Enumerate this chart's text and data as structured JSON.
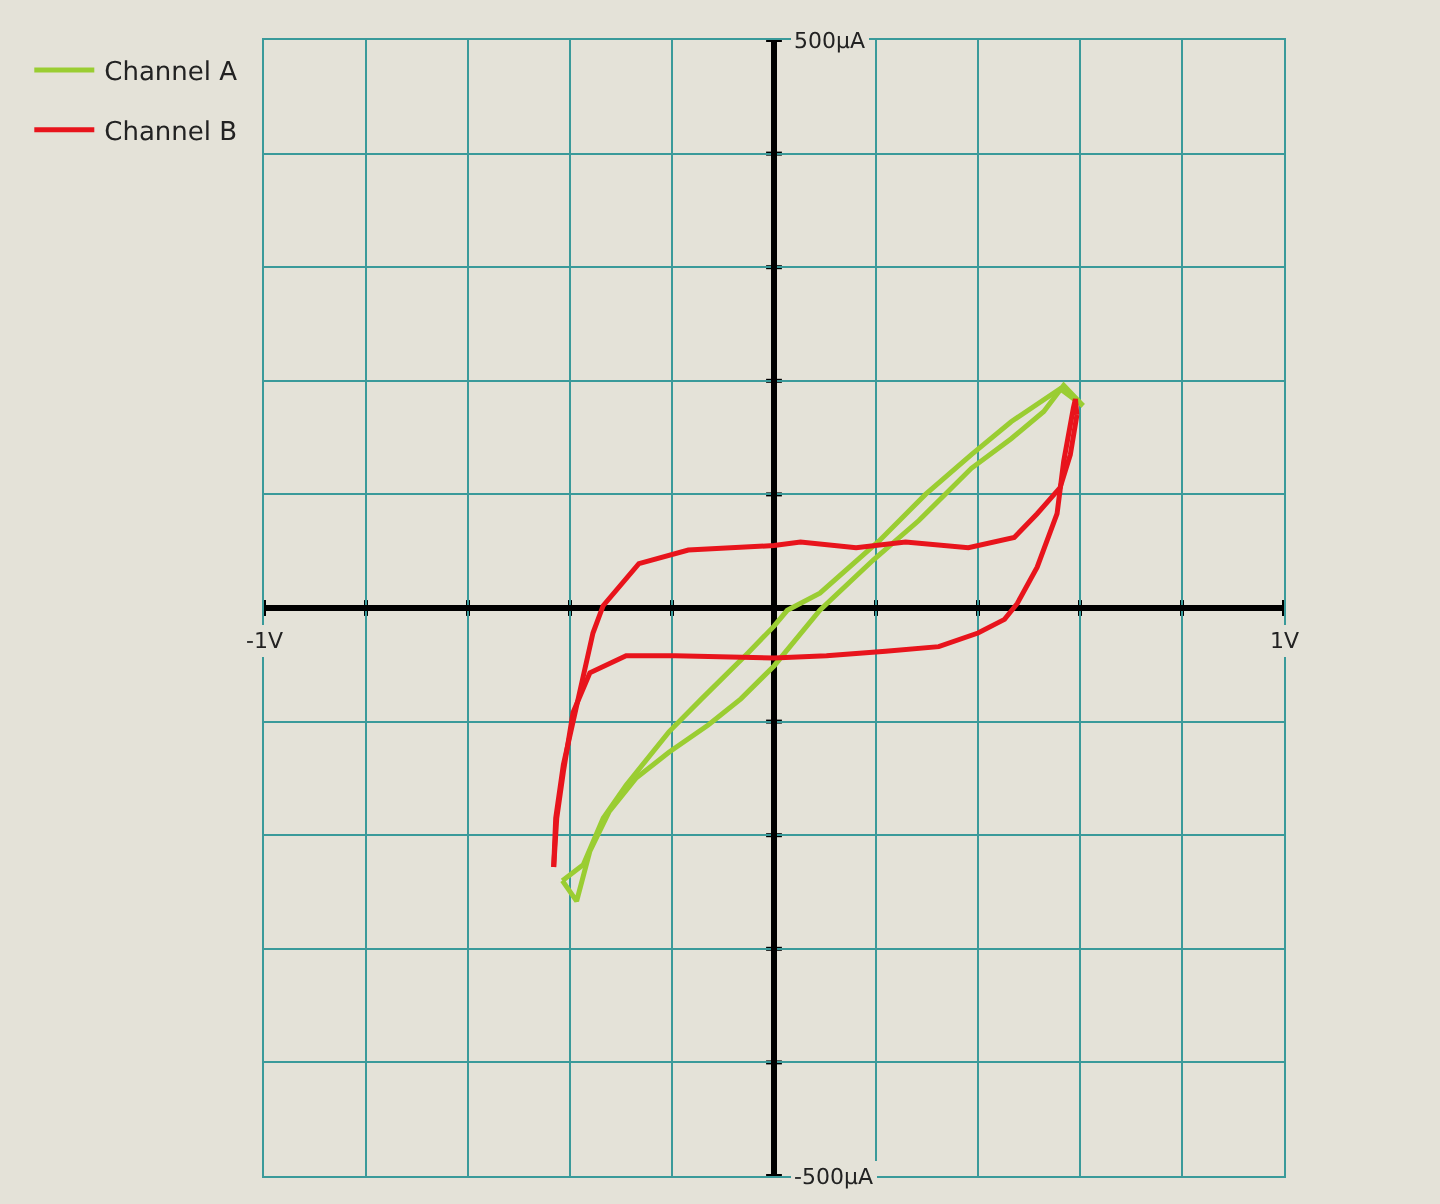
{
  "chart_data": {
    "type": "line",
    "xlim": [
      -1,
      1
    ],
    "xticks": [
      {
        "value": -1,
        "label": "-1V"
      },
      {
        "value": -0.8,
        "label": null
      },
      {
        "value": -0.6,
        "label": null
      },
      {
        "value": -0.4,
        "label": null
      },
      {
        "value": -0.2,
        "label": null
      },
      {
        "value": 0,
        "label": null
      },
      {
        "value": 0.2,
        "label": null
      },
      {
        "value": 0.4,
        "label": null
      },
      {
        "value": 0.6,
        "label": null
      },
      {
        "value": 0.8,
        "label": null
      },
      {
        "value": 1,
        "label": "1V"
      }
    ],
    "ylim": [
      -500,
      500
    ],
    "yticks": [
      {
        "value": -500,
        "label": "-500µA"
      },
      {
        "value": -400,
        "label": null
      },
      {
        "value": -300,
        "label": null
      },
      {
        "value": -200,
        "label": null
      },
      {
        "value": -100,
        "label": null
      },
      {
        "value": 0,
        "label": null
      },
      {
        "value": 100,
        "label": null
      },
      {
        "value": 200,
        "label": null
      },
      {
        "value": 300,
        "label": null
      },
      {
        "value": 400,
        "label": null
      },
      {
        "value": 500,
        "label": "500µA"
      }
    ],
    "grid": true,
    "legend": "top left",
    "series": [
      {
        "name": "Channel A",
        "color": "#9acd32",
        "x": [
          -0.415,
          -0.387,
          -0.361,
          -0.323,
          -0.271,
          -0.206,
          -0.129,
          -0.065,
          0,
          0.09,
          0.194,
          0.284,
          0.387,
          0.465,
          0.529,
          0.568,
          0.606,
          null,
          0.606,
          0.561,
          0.465,
          0.387,
          0.297,
          0.206,
          0.09,
          0.026,
          0,
          -0.052,
          -0.142,
          -0.206,
          -0.29,
          -0.335,
          -0.374,
          -0.415
        ],
        "values": [
          -240,
          -258,
          -214,
          -179,
          -150,
          -127,
          -103,
          -80,
          -51,
          -2,
          42,
          77,
          123,
          149,
          173,
          196,
          178,
          null,
          178,
          193,
          164,
          135,
          100,
          59,
          13,
          -2,
          -16,
          -40,
          -80,
          -109,
          -156,
          -185,
          -226,
          -240
        ]
      },
      {
        "name": "Channel B",
        "color": "#e8141c",
        "x": [
          -0.432,
          -0.426,
          -0.413,
          -0.394,
          -0.361,
          -0.29,
          -0.194,
          0,
          0.103,
          0.219,
          0.323,
          0.4,
          0.452,
          0.477,
          0.516,
          0.555,
          0.568,
          0.587,
          0.591,
          0.594,
          null,
          0.594,
          0.581,
          0.561,
          0.516,
          0.471,
          0.381,
          0.258,
          0.161,
          0.052,
          0,
          -0.168,
          -0.265,
          -0.335,
          -0.355,
          -0.387,
          -0.413,
          -0.428,
          -0.432
        ],
        "values": [
          -228,
          -185,
          -144,
          -92,
          -57,
          -42,
          -42,
          -44,
          -42,
          -38,
          -34,
          -22,
          -10,
          4,
          36,
          83,
          129,
          176,
          184,
          170,
          null,
          170,
          135,
          106,
          83,
          62,
          53,
          58,
          53,
          58,
          55,
          51,
          39,
          2,
          -22,
          -86,
          -138,
          -185,
          -228
        ]
      }
    ]
  }
}
